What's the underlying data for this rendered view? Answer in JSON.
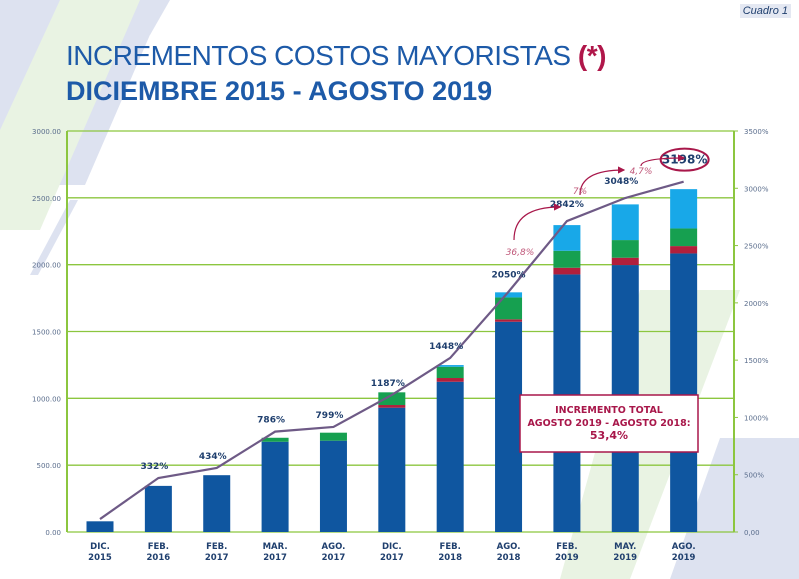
{
  "corner_label": "Cuadro 1",
  "title_main": "INCREMENTOS COSTOS MAYORISTAS",
  "title_mark": "(*)",
  "subtitle": "DICIEMBRE 2015 - AGOSTO 2019",
  "colors": {
    "blue": "#0f56a0",
    "red": "#b11f3c",
    "green": "#16a050",
    "lightblue": "#18a8e8",
    "line": "#6e5a86",
    "grid": "#8cc63f",
    "accent": "#a8174a",
    "text": "#1f3f6e"
  },
  "chart_data": {
    "type": "bar",
    "stacked": true,
    "categories": [
      "DIC. 2015",
      "FEB. 2016",
      "FEB. 2017",
      "MAR. 2017",
      "AGO. 2017",
      "DIC. 2017",
      "FEB. 2018",
      "AGO. 2018",
      "FEB. 2019",
      "MAY. 2019",
      "AGO. 2019"
    ],
    "category_lines": [
      [
        "DIC.",
        "2015"
      ],
      [
        "FEB.",
        "2016"
      ],
      [
        "FEB.",
        "2017"
      ],
      [
        "MAR.",
        "2017"
      ],
      [
        "AGO.",
        "2017"
      ],
      [
        "DIC.",
        "2017"
      ],
      [
        "FEB.",
        "2018"
      ],
      [
        "AGO.",
        "2018"
      ],
      [
        "FEB.",
        "2019"
      ],
      [
        "MAY.",
        "2019"
      ],
      [
        "AGO.",
        "2019"
      ]
    ],
    "series": [
      {
        "color": "blue",
        "values": [
          80,
          345,
          425,
          675,
          683,
          930,
          1124,
          1573,
          1927,
          1997,
          2084
        ]
      },
      {
        "color": "red",
        "values": [
          0,
          0,
          0,
          0,
          0,
          20,
          28,
          18,
          50,
          55,
          55
        ]
      },
      {
        "color": "green",
        "values": [
          0,
          0,
          0,
          30,
          60,
          95,
          84,
          164,
          127,
          132,
          132
        ]
      },
      {
        "color": "lightblue",
        "values": [
          0,
          0,
          0,
          0,
          0,
          0,
          13,
          38,
          192,
          267,
          294
        ]
      }
    ],
    "line": {
      "color": "line",
      "axis": "right",
      "values": [
        113,
        471,
        559,
        876,
        917,
        1196,
        1519,
        2097,
        2714,
        2915,
        3058
      ],
      "labels": [
        "",
        "332%",
        "434%",
        "786%",
        "799%",
        "1187%",
        "1448%",
        "2050%",
        "2842%",
        "3048%",
        "3198%"
      ]
    },
    "left_axis": {
      "range": [
        0,
        3000
      ],
      "ticks": [
        "0.00",
        "500.00",
        "1000.00",
        "1500.00",
        "2000.00",
        "2500.00",
        "3000.00"
      ]
    },
    "right_axis": {
      "range": [
        0,
        3500
      ],
      "ticks": [
        "0,00",
        "500%",
        "1000%",
        "1500%",
        "2000%",
        "2500%",
        "3000%",
        "3500%"
      ]
    },
    "grid": true,
    "annotations": {
      "growth": [
        {
          "from": 7,
          "to": 8,
          "text": "36,8%"
        },
        {
          "from": 8,
          "to": 9,
          "text": "7%"
        },
        {
          "from": 9,
          "to": 10,
          "text": "4,7%"
        }
      ],
      "highlighted": "3198%",
      "callout": [
        "INCREMENTO TOTAL",
        "AGOSTO 2019 - AGOSTO 2018:",
        "53,4%"
      ]
    }
  }
}
